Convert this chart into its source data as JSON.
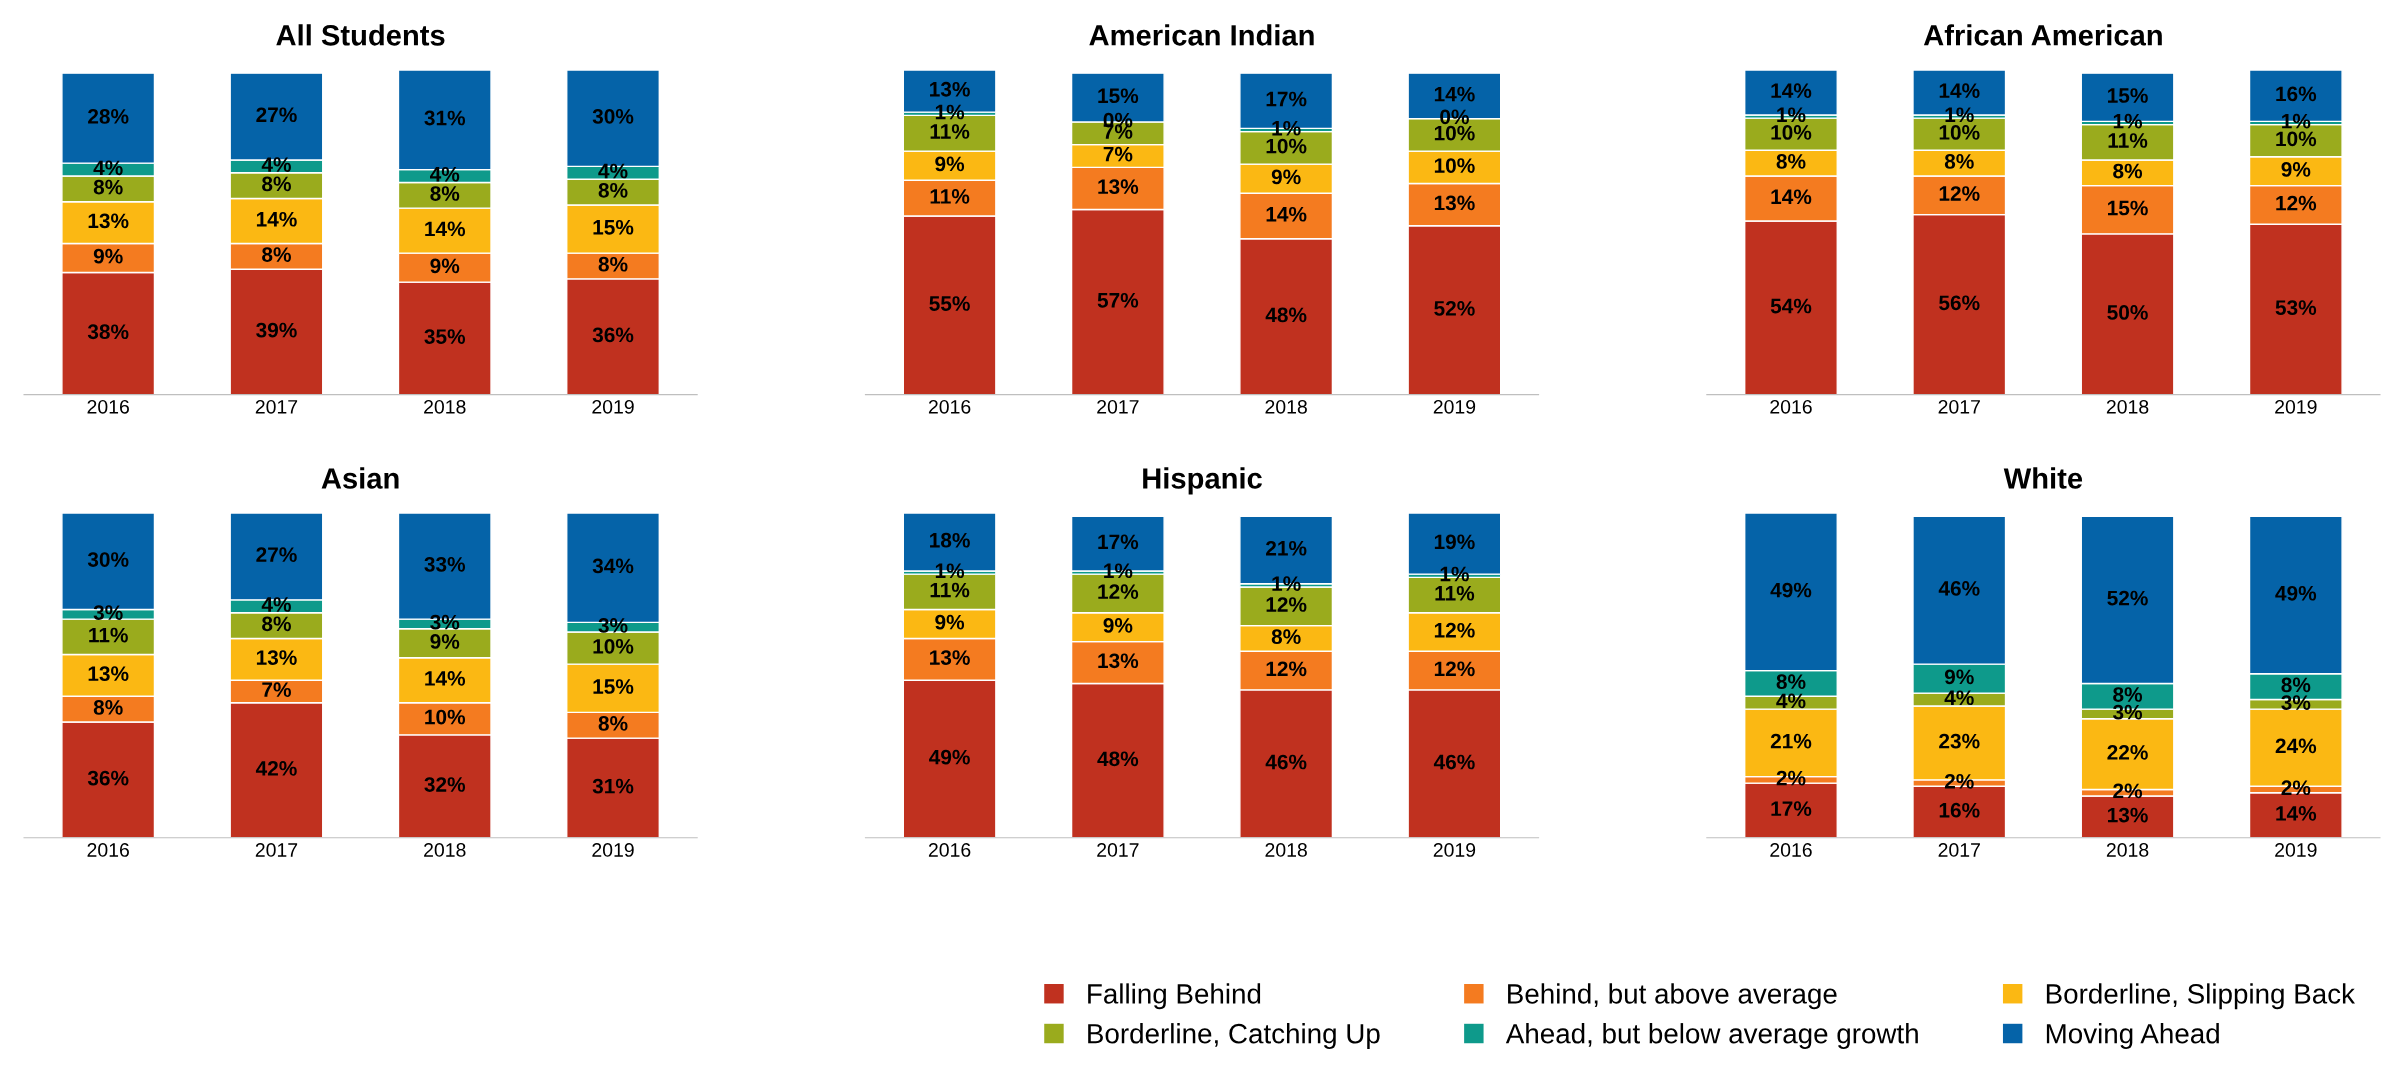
{
  "chart_data": [
    {
      "type": "bar",
      "stacked": true,
      "title": "All Students",
      "legend": "bottom",
      "categories": [
        "2016",
        "2017",
        "2018",
        "2019"
      ],
      "series": [
        {
          "name": "Falling Behind",
          "color": "#c0311f",
          "values": [
            38,
            39,
            35,
            36
          ],
          "value_labels": [
            "38%",
            "39%",
            "35%",
            "36%"
          ]
        },
        {
          "name": "Behind, but above average",
          "color": "#f47b20",
          "values": [
            9,
            8,
            9,
            8
          ],
          "value_labels": [
            "9%",
            "8%",
            "9%",
            "8%"
          ]
        },
        {
          "name": "Borderline, Slipping Back",
          "color": "#fbb813",
          "values": [
            13,
            14,
            14,
            15
          ],
          "value_labels": [
            "13%",
            "14%",
            "14%",
            "15%"
          ]
        },
        {
          "name": "Borderline, Catching Up",
          "color": "#9aab1d",
          "values": [
            8,
            8,
            8,
            8
          ],
          "value_labels": [
            "8%",
            "8%",
            "8%",
            "8%"
          ]
        },
        {
          "name": "Ahead, but below average growth",
          "color": "#0e9a8b",
          "values": [
            4,
            4,
            4,
            4
          ],
          "value_labels": [
            "4%",
            "4%",
            "4%",
            "4%"
          ]
        },
        {
          "name": "Moving Ahead",
          "color": "#0563a8",
          "values": [
            28,
            27,
            31,
            30
          ],
          "value_labels": [
            "28%",
            "27%",
            "31%",
            "30%"
          ]
        }
      ]
    },
    {
      "type": "bar",
      "stacked": true,
      "title": "American Indian",
      "categories": [
        "2016",
        "2017",
        "2018",
        "2019"
      ],
      "series": [
        {
          "color": "#c0311f",
          "values": [
            55,
            57,
            48,
            52
          ],
          "value_labels": [
            "55%",
            "57%",
            "48%",
            "52%"
          ]
        },
        {
          "color": "#f47b20",
          "values": [
            11,
            13,
            14,
            13
          ],
          "value_labels": [
            "11%",
            "13%",
            "14%",
            "13%"
          ]
        },
        {
          "color": "#fbb813",
          "values": [
            9,
            7,
            9,
            10
          ],
          "value_labels": [
            "9%",
            "7%",
            "9%",
            "10%"
          ]
        },
        {
          "color": "#9aab1d",
          "values": [
            11,
            7,
            10,
            10
          ],
          "value_labels": [
            "11%",
            "7%",
            "10%",
            "10%"
          ]
        },
        {
          "color": "#0e9a8b",
          "values": [
            1,
            0,
            1,
            0
          ],
          "value_labels": [
            "1%",
            "0%",
            "1%",
            "0%"
          ]
        },
        {
          "color": "#0563a8",
          "values": [
            13,
            15,
            17,
            14
          ],
          "value_labels": [
            "13%",
            "15%",
            "17%",
            "14%"
          ]
        }
      ]
    },
    {
      "type": "bar",
      "stacked": true,
      "title": "African American",
      "categories": [
        "2016",
        "2017",
        "2018",
        "2019"
      ],
      "series": [
        {
          "color": "#c0311f",
          "values": [
            54,
            56,
            50,
            53
          ],
          "value_labels": [
            "54%",
            "56%",
            "50%",
            "53%"
          ]
        },
        {
          "color": "#f47b20",
          "values": [
            14,
            12,
            15,
            12
          ],
          "value_labels": [
            "14%",
            "12%",
            "15%",
            "12%"
          ]
        },
        {
          "color": "#fbb813",
          "values": [
            8,
            8,
            8,
            9
          ],
          "value_labels": [
            "8%",
            "8%",
            "8%",
            "9%"
          ]
        },
        {
          "color": "#9aab1d",
          "values": [
            10,
            10,
            11,
            10
          ],
          "value_labels": [
            "10%",
            "10%",
            "11%",
            "10%"
          ]
        },
        {
          "color": "#0e9a8b",
          "values": [
            1,
            1,
            1,
            1
          ],
          "value_labels": [
            "1%",
            "1%",
            "1%",
            "1%"
          ]
        },
        {
          "color": "#0563a8",
          "values": [
            14,
            14,
            15,
            16
          ],
          "value_labels": [
            "14%",
            "14%",
            "15%",
            "16%"
          ]
        }
      ]
    },
    {
      "type": "bar",
      "stacked": true,
      "title": "Asian",
      "categories": [
        "2016",
        "2017",
        "2018",
        "2019"
      ],
      "series": [
        {
          "color": "#c0311f",
          "values": [
            36,
            42,
            32,
            31
          ],
          "value_labels": [
            "36%",
            "42%",
            "32%",
            "31%"
          ]
        },
        {
          "color": "#f47b20",
          "values": [
            8,
            7,
            10,
            8
          ],
          "value_labels": [
            "8%",
            "7%",
            "10%",
            "8%"
          ]
        },
        {
          "color": "#fbb813",
          "values": [
            13,
            13,
            14,
            15
          ],
          "value_labels": [
            "13%",
            "13%",
            "14%",
            "15%"
          ]
        },
        {
          "color": "#9aab1d",
          "values": [
            11,
            8,
            9,
            10
          ],
          "value_labels": [
            "11%",
            "8%",
            "9%",
            "10%"
          ]
        },
        {
          "color": "#0e9a8b",
          "values": [
            3,
            4,
            3,
            3
          ],
          "value_labels": [
            "3%",
            "4%",
            "3%",
            "3%"
          ]
        },
        {
          "color": "#0563a8",
          "values": [
            30,
            27,
            33,
            34
          ],
          "value_labels": [
            "30%",
            "27%",
            "33%",
            "34%"
          ]
        }
      ]
    },
    {
      "type": "bar",
      "stacked": true,
      "title": "Hispanic",
      "categories": [
        "2016",
        "2017",
        "2018",
        "2019"
      ],
      "series": [
        {
          "color": "#c0311f",
          "values": [
            49,
            48,
            46,
            46
          ],
          "value_labels": [
            "49%",
            "48%",
            "46%",
            "46%"
          ]
        },
        {
          "color": "#f47b20",
          "values": [
            13,
            13,
            12,
            12
          ],
          "value_labels": [
            "13%",
            "13%",
            "12%",
            "12%"
          ]
        },
        {
          "color": "#fbb813",
          "values": [
            9,
            9,
            8,
            12
          ],
          "value_labels": [
            "9%",
            "9%",
            "8%",
            "12%"
          ]
        },
        {
          "color": "#9aab1d",
          "values": [
            11,
            12,
            12,
            11
          ],
          "value_labels": [
            "11%",
            "12%",
            "12%",
            "11%"
          ]
        },
        {
          "color": "#0e9a8b",
          "values": [
            1,
            1,
            1,
            1
          ],
          "value_labels": [
            "1%",
            "1%",
            "1%",
            "1%"
          ]
        },
        {
          "color": "#0563a8",
          "values": [
            18,
            17,
            21,
            19
          ],
          "value_labels": [
            "18%",
            "17%",
            "21%",
            "19%"
          ]
        }
      ]
    },
    {
      "type": "bar",
      "stacked": true,
      "title": "White",
      "categories": [
        "2016",
        "2017",
        "2018",
        "2019"
      ],
      "series": [
        {
          "color": "#c0311f",
          "values": [
            17,
            16,
            13,
            14
          ],
          "value_labels": [
            "17%",
            "16%",
            "13%",
            "14%"
          ]
        },
        {
          "color": "#f47b20",
          "values": [
            2,
            2,
            2,
            2
          ],
          "value_labels": [
            "2%",
            "2%",
            "2%",
            "2%"
          ]
        },
        {
          "color": "#fbb813",
          "values": [
            21,
            23,
            22,
            24
          ],
          "value_labels": [
            "21%",
            "23%",
            "22%",
            "24%"
          ]
        },
        {
          "color": "#9aab1d",
          "values": [
            4,
            4,
            3,
            3
          ],
          "value_labels": [
            "4%",
            "4%",
            "3%",
            "3%"
          ]
        },
        {
          "color": "#0e9a8b",
          "values": [
            8,
            9,
            8,
            8
          ],
          "value_labels": [
            "8%",
            "9%",
            "8%",
            "8%"
          ]
        },
        {
          "color": "#0563a8",
          "values": [
            49,
            46,
            52,
            49
          ],
          "value_labels": [
            "49%",
            "46%",
            "52%",
            "49%"
          ]
        }
      ]
    }
  ]
}
